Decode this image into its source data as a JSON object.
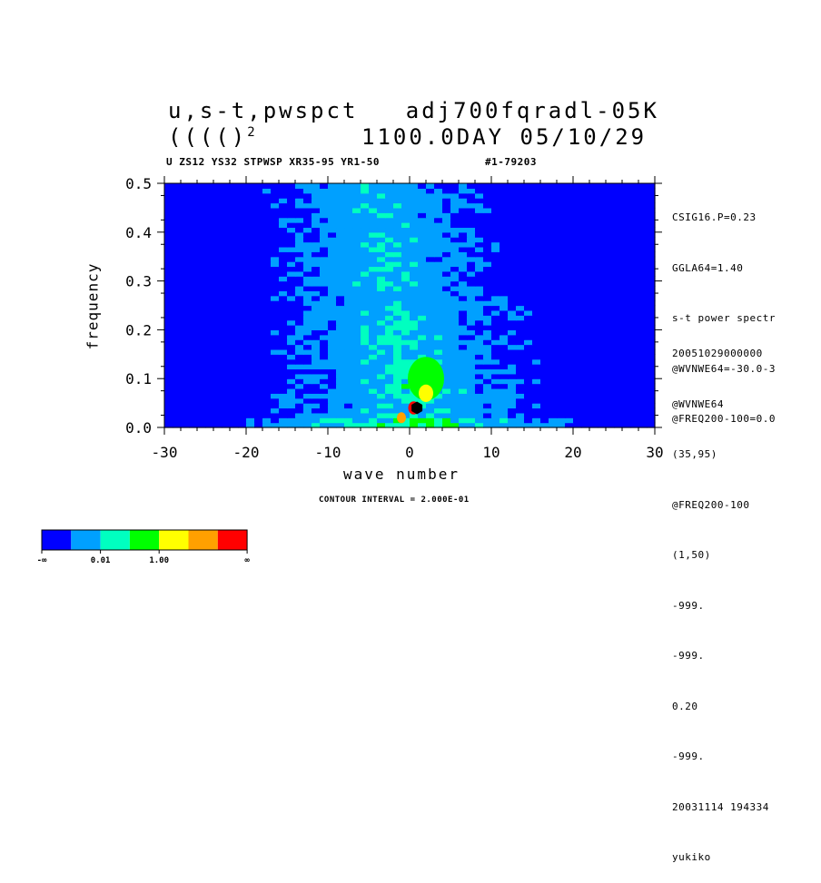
{
  "header": {
    "title_line1": "u,s-t,pwspct   adj700fqradl-05K",
    "title_line2_left": "(((()",
    "title_line2_sup": "2",
    "title_line2_right": "1100.0DAY 05/10/29",
    "subtitle_left": "U ZS12 YS32 STPWSP XR35-95 YR1-50",
    "subtitle_right": "#1-79203"
  },
  "side_top": [
    "CSIG16.P=0.23",
    "GGLA64=1.40",
    "s-t power spectr",
    "@WVNWE64=-30.0-3",
    "@FREQ200-100=0.0"
  ],
  "side_bottom": [
    "20051029000000",
    "@WVNWE64",
    "(35,95)",
    "@FREQ200-100",
    "(1,50)",
    "-999.",
    "-999.",
    "0.20",
    "-999.",
    "20031114 194334",
    "yukiko"
  ],
  "footer": {
    "contour_interval": "CONTOUR INTERVAL = 2.000E-01"
  },
  "colorbar": {
    "colors": [
      "#0000ff",
      "#00a0ff",
      "#00ffc0",
      "#00ff00",
      "#ffff00",
      "#ffa000",
      "#ff0000"
    ],
    "labels": [
      "-∞",
      "0.01",
      "1.00",
      "∞"
    ]
  },
  "chart_data": {
    "type": "heatmap",
    "title": "u,s-t,pwspct   adj700fqradl-05K",
    "xlabel": "wave number",
    "ylabel": "frequency",
    "xlim": [
      -30,
      30
    ],
    "ylim": [
      0.0,
      0.5
    ],
    "xticks": [
      "-30",
      "-20",
      "-10",
      "0",
      "10",
      "20",
      "30"
    ],
    "yticks": [
      "0.0",
      "0.1",
      "0.2",
      "0.3",
      "0.4",
      "0.5"
    ],
    "levels_legend": [
      "-∞",
      "0.01",
      "1.00",
      "∞"
    ],
    "level_colors": [
      "#0000ff",
      "#00a0ff",
      "#00ffc0",
      "#00ff00",
      "#ffff00",
      "#ffa000",
      "#ff0000"
    ],
    "features": [
      {
        "desc_level": 6,
        "x": 0.5,
        "y": 0.04
      },
      {
        "desc_level": 5,
        "x": -1,
        "y": 0.02
      },
      {
        "desc_level": 4,
        "x": 2,
        "y": 0.07
      },
      {
        "desc_level": 3,
        "x": 2,
        "y": 0.1
      }
    ]
  }
}
